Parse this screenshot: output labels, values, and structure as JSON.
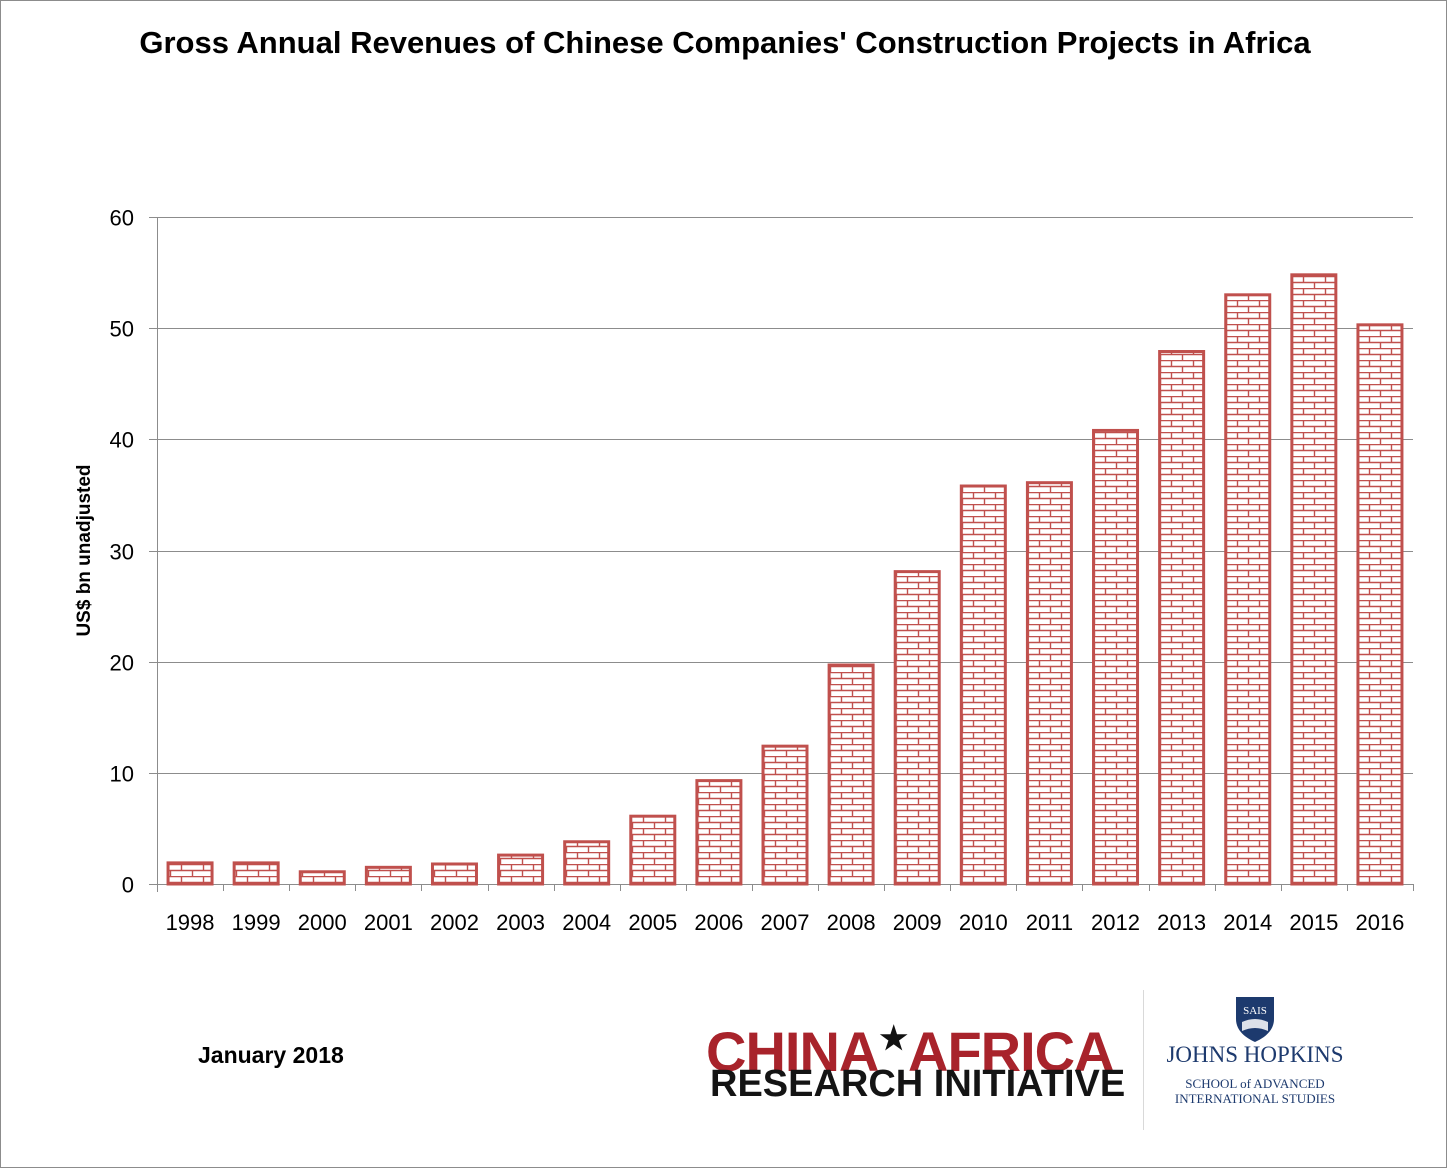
{
  "chart_data": {
    "type": "bar",
    "title": "Gross Annual Revenues of Chinese Companies' Construction Projects in Africa",
    "xlabel": "",
    "ylabel": "US$ bn unadjusted",
    "ylim": [
      0,
      60
    ],
    "yticks": [
      0,
      10,
      20,
      30,
      40,
      50,
      60
    ],
    "grid": true,
    "categories": [
      "1998",
      "1999",
      "2000",
      "2001",
      "2002",
      "2003",
      "2004",
      "2005",
      "2006",
      "2007",
      "2008",
      "2009",
      "2010",
      "2011",
      "2012",
      "2013",
      "2014",
      "2015",
      "2016"
    ],
    "values": [
      1.9,
      1.9,
      1.1,
      1.5,
      1.8,
      2.6,
      3.8,
      6.1,
      9.3,
      12.4,
      19.7,
      28.1,
      35.8,
      36.1,
      40.8,
      47.9,
      53.0,
      54.8,
      50.3
    ],
    "bar_color": "#c0504d"
  },
  "footer": {
    "date": "January 2018",
    "logo": {
      "line1_left": "CHINA",
      "star": "★",
      "line1_right": "AFRICA",
      "line2": "RESEARCH INITIATIVE",
      "shield_text": "SAIS",
      "university": "JOHNS HOPKINS",
      "school_line1": "SCHOOL of ADVANCED",
      "school_line2": "INTERNATIONAL STUDIES"
    }
  }
}
